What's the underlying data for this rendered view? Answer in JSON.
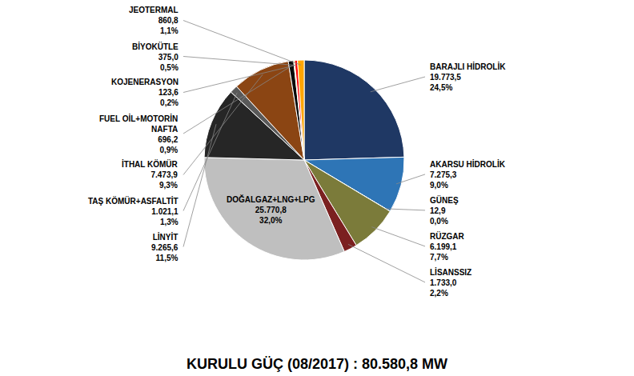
{
  "chart_data": {
    "type": "pie",
    "title": "KURULU GÜÇ (08/2017) : 80.580,8 MW",
    "categories": [
      "BARAJLI HİDROLİK\n19.773,5\n24,5%",
      "AKARSU HİDROLİK\n7.275,3\n9,0%",
      "GÜNEŞ\n12,9\n0,0%",
      "RÜZGAR\n6.199,1\n7,7%",
      "LİSANSSIZ\n1.733,0\n2,2%",
      "DOĞALGAZ+LNG+LPG\n25.770,8\n32,0%",
      "LİNYİT\n9.265,6\n11,5%",
      "TAŞ KÖMÜR+ASFALTİT\n1.021,1\n1,3%",
      "İTHAL KÖMÜR\n7.473,9\n9,3%",
      "FUEL OİL+MOTORİN\nNAFTA\n696,2\n0,9%",
      "KOJENERASYON\n123,6\n0,2%",
      "BİYOKÜTLE\n375,0\n0,5%",
      "JEOTERMAL\n860,8\n1,1%"
    ],
    "values": [
      19773.5,
      7275.3,
      12.9,
      6199.1,
      1733.0,
      25770.8,
      9265.6,
      1021.1,
      7473.9,
      696.2,
      123.6,
      375.0,
      860.8
    ],
    "colors": [
      "#1F3864",
      "#2E75B6",
      "#70AD47",
      "#7B7B3A",
      "#7B2020",
      "#BFBFBF",
      "#262626",
      "#595959",
      "#8B4513",
      "#0A0A0A",
      "#FFD700",
      "#FF0000",
      "#FFA500"
    ]
  }
}
